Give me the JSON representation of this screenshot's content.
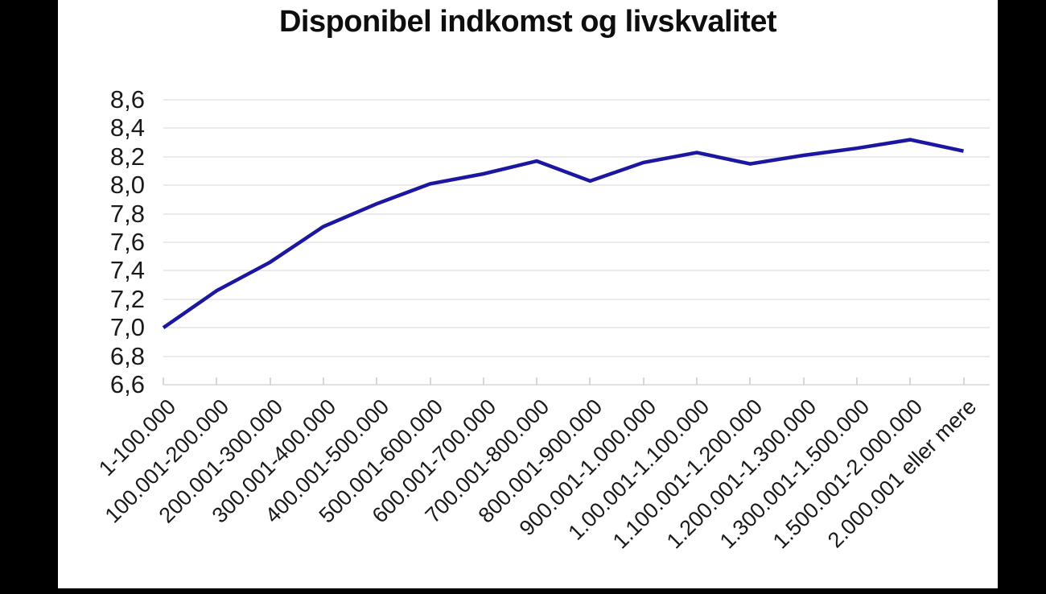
{
  "page": {
    "title": "Disponibel indkomst og livskvalitet"
  },
  "colors": {
    "background": "#000000",
    "panel": "#ffffff",
    "line": "#1c17a0",
    "grid": "#ebebeb",
    "axis": "#e2e2e2",
    "tick": "#d7d7d7",
    "text": "#1a1a1a"
  },
  "chart_data": {
    "type": "line",
    "title": "Disponibel indkomst og livskvalitet",
    "categories": [
      "1-100.000",
      "100.001-200.000",
      "200.001-300.000",
      "300.001-400.000",
      "400.001-500.000",
      "500.001-600.000",
      "600.001-700.000",
      "700.001-800.000",
      "800.001-900.000",
      "900.001-1.000.000",
      "1.00.001-1.100.000",
      "1.100.001-1.200.000",
      "1.200.001-1.300.000",
      "1.300.001-1.500.000",
      "1.500.001-2.000.000",
      "2.000.001 eller mere"
    ],
    "values": [
      7.0,
      7.26,
      7.46,
      7.71,
      7.87,
      8.01,
      8.08,
      8.17,
      8.03,
      8.16,
      8.23,
      8.15,
      8.21,
      8.26,
      8.32,
      8.24
    ],
    "xlabel": "",
    "ylabel": "",
    "ylim": [
      6.6,
      8.6
    ],
    "y_tick_step": 0.2,
    "y_tick_labels": [
      "8,6",
      "8,4",
      "8,2",
      "8,0",
      "7,8",
      "7,6",
      "7,4",
      "7,2",
      "7,0",
      "6,8",
      "6,6"
    ],
    "grid": true,
    "legend": false,
    "decimal_separator": ","
  }
}
